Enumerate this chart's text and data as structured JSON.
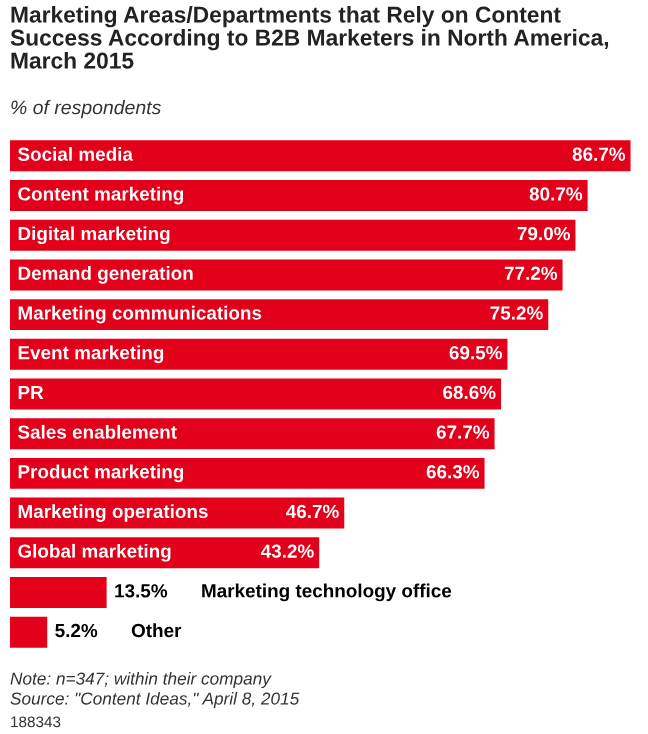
{
  "chart_data": {
    "type": "bar",
    "orientation": "horizontal",
    "title": "Marketing Areas/Departments that Rely on Content Success According to B2B Marketers in North America, March 2015",
    "subtitle": "% of respondents",
    "categories": [
      "Social media",
      "Content marketing",
      "Digital marketing",
      "Demand generation",
      "Marketing communications",
      "Event marketing",
      "PR",
      "Sales enablement",
      "Product marketing",
      "Marketing operations",
      "Global marketing",
      "Marketing technology office",
      "Other"
    ],
    "values": [
      86.7,
      80.7,
      79.0,
      77.2,
      75.2,
      69.5,
      68.6,
      67.7,
      66.3,
      46.7,
      43.2,
      13.5,
      5.2
    ],
    "value_labels": [
      "86.7%",
      "80.7%",
      "79.0%",
      "77.2%",
      "75.2%",
      "69.5%",
      "68.6%",
      "67.7%",
      "66.3%",
      "46.7%",
      "43.2%",
      "13.5%",
      "5.2%"
    ],
    "color": "#e2001a",
    "annotations": [
      "Note: n=347; within their company",
      "Source: \"Content Ideas,\" April 8, 2015",
      "188343"
    ]
  }
}
